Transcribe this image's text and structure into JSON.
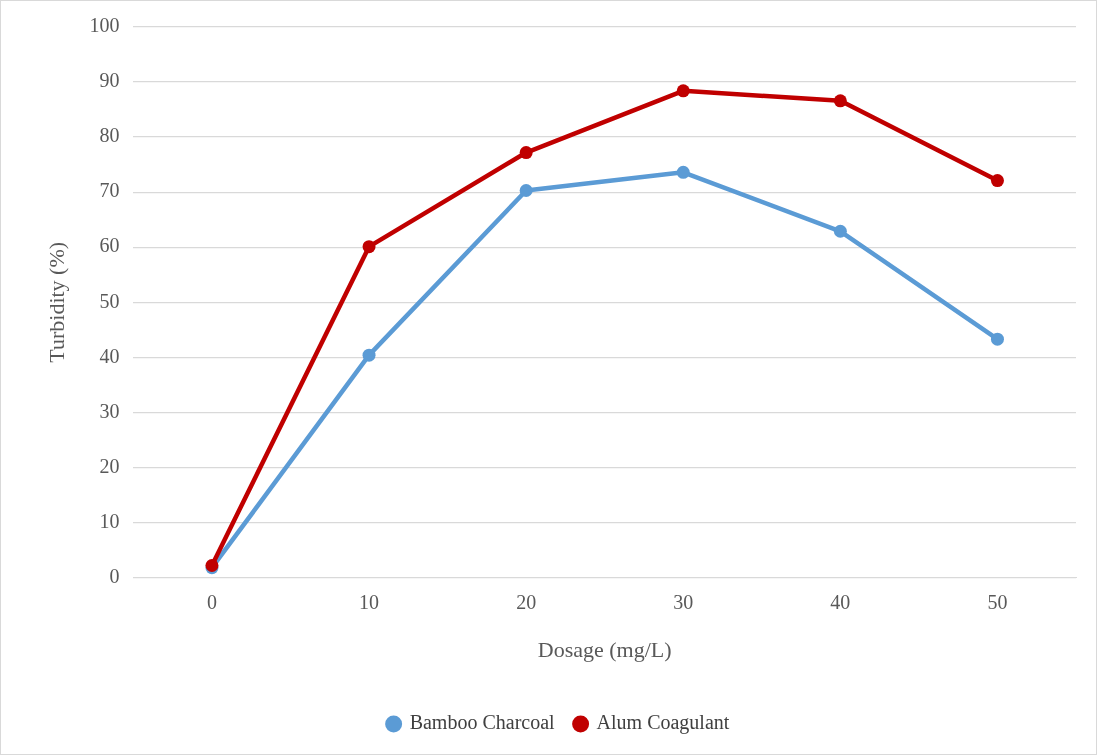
{
  "chart_data": {
    "type": "line",
    "xlabel": "Dosage (mg/L)",
    "ylabel": "Turbidity (%)",
    "categories": [
      "0",
      "10",
      "20",
      "30",
      "40",
      "50"
    ],
    "series": [
      {
        "name": "Bamboo Charcoal",
        "color": "#5b9bd5",
        "values": [
          1.8,
          40.4,
          70.3,
          73.6,
          62.9,
          43.3
        ]
      },
      {
        "name": "Alum Coagulant",
        "color": "#c00000",
        "values": [
          2.2,
          60.1,
          77.2,
          88.4,
          86.6,
          72.1
        ]
      }
    ],
    "ylim": [
      0,
      100
    ],
    "yticks": [
      0,
      10,
      20,
      30,
      40,
      50,
      60,
      70,
      80,
      90,
      100
    ],
    "grid": "y",
    "legend": "bottom",
    "marker": "circle",
    "line_style": "solid"
  }
}
